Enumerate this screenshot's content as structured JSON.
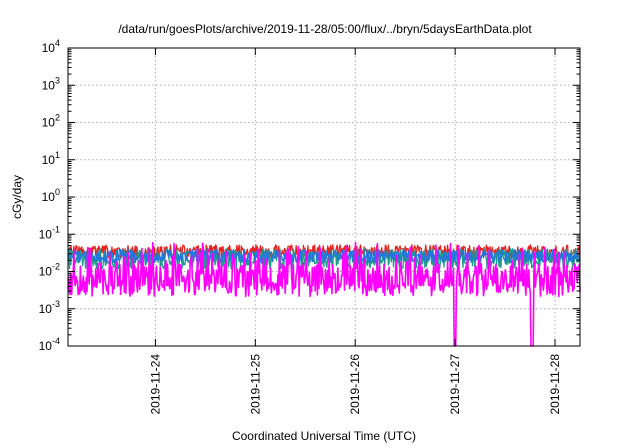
{
  "chart_data": {
    "type": "line",
    "title": "/data/run/goesPlots/archive/2019-11-28/05:00/flux/../bryn/5daysEarthData.plot",
    "xlabel": "Coordinated Universal Time (UTC)",
    "ylabel": "cGy/day",
    "yscale": "log",
    "ylim": [
      0.0001,
      10000
    ],
    "xlim": [
      "2019-11-23T03:00",
      "2019-11-28T06:00"
    ],
    "grid": true,
    "legend": "none",
    "y_ticks": [
      {
        "base": "10",
        "exp": "-4",
        "value": 0.0001
      },
      {
        "base": "10",
        "exp": "-3",
        "value": 0.001
      },
      {
        "base": "10",
        "exp": "-2",
        "value": 0.01
      },
      {
        "base": "10",
        "exp": "-1",
        "value": 0.1
      },
      {
        "base": "10",
        "exp": "0",
        "value": 1
      },
      {
        "base": "10",
        "exp": "1",
        "value": 10
      },
      {
        "base": "10",
        "exp": "2",
        "value": 100
      },
      {
        "base": "10",
        "exp": "3",
        "value": 1000
      },
      {
        "base": "10",
        "exp": "4",
        "value": 10000
      }
    ],
    "x_ticks": [
      "2019-11-24",
      "2019-11-25",
      "2019-11-26",
      "2019-11-27",
      "2019-11-28"
    ],
    "series": [
      {
        "color": "#e8231f",
        "base": 0.035,
        "spread": 0.35,
        "dips": false
      },
      {
        "color": "#1e9b8a",
        "base": 0.022,
        "spread": 0.55,
        "dips": false
      },
      {
        "color": "#2277dd",
        "base": 0.026,
        "spread": 0.35,
        "dips": false
      },
      {
        "color": "#ff00ff",
        "base": 0.006,
        "spread": 0.9,
        "dips": true
      }
    ],
    "dropouts": [
      "2019-11-27T00:00",
      "2019-11-27T18:30"
    ]
  }
}
